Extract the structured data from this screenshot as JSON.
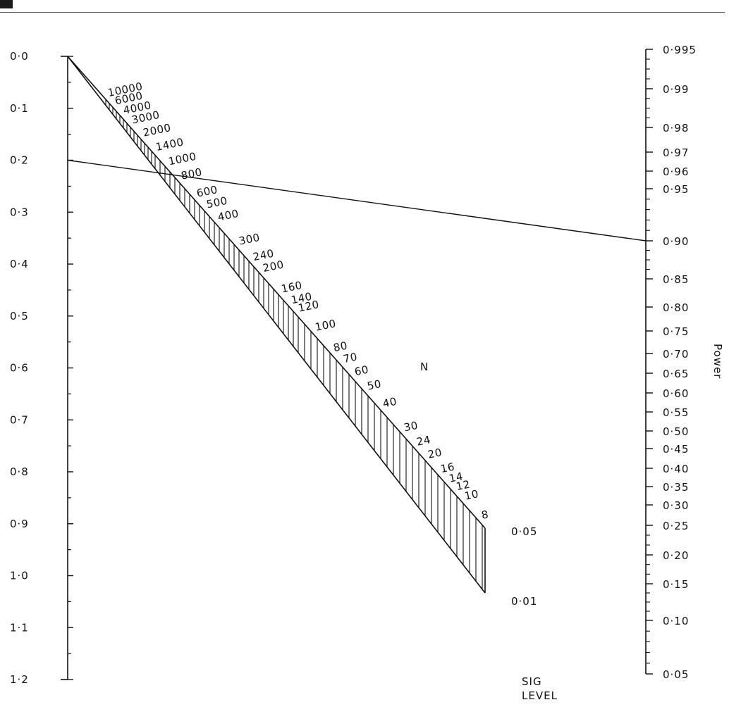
{
  "chart_data": {
    "type": "nomogram",
    "left_axis": {
      "ticks": [
        "0·0",
        "0·1",
        "0·2",
        "0·3",
        "0·4",
        "0·5",
        "0·6",
        "0·7",
        "0·8",
        "0·9",
        "1·0",
        "1·1",
        "1·2"
      ],
      "values": [
        0.0,
        0.1,
        0.2,
        0.3,
        0.4,
        0.5,
        0.6,
        0.7,
        0.8,
        0.9,
        1.0,
        1.1,
        1.2
      ],
      "minor_step": 0.05
    },
    "right_axis": {
      "title": "Power",
      "ticks": [
        "0·995",
        "0·99",
        "0·98",
        "0·97",
        "0·96",
        "0·95",
        "0·90",
        "0·85",
        "0·80",
        "0·75",
        "0·70",
        "0·65",
        "0·60",
        "0·55",
        "0·50",
        "0·45",
        "0·40",
        "0·35",
        "0·30",
        "0·25",
        "0·20",
        "0·15",
        "0·10",
        "0·05"
      ],
      "values": [
        0.995,
        0.99,
        0.98,
        0.97,
        0.96,
        0.95,
        0.9,
        0.85,
        0.8,
        0.75,
        0.7,
        0.65,
        0.6,
        0.55,
        0.5,
        0.45,
        0.4,
        0.35,
        0.3,
        0.25,
        0.2,
        0.15,
        0.1,
        0.05
      ]
    },
    "n_scale": {
      "title": "N",
      "labels": [
        "10000",
        "6000",
        "4000",
        "3000",
        "2000",
        "1400",
        "1000",
        "800",
        "600",
        "500",
        "400",
        "300",
        "240",
        "200",
        "160",
        "140",
        "120",
        "100",
        "80",
        "70",
        "60",
        "50",
        "40",
        "30",
        "24",
        "20",
        "16",
        "14",
        "12",
        "10",
        "8"
      ],
      "values": [
        10000,
        6000,
        4000,
        3000,
        2000,
        1400,
        1000,
        800,
        600,
        500,
        400,
        300,
        240,
        200,
        160,
        140,
        120,
        100,
        80,
        70,
        60,
        50,
        40,
        30,
        24,
        20,
        16,
        14,
        12,
        10,
        8
      ]
    },
    "sig_level": {
      "title_line1": "SIG",
      "title_line2": "LEVEL",
      "levels": [
        "0·05",
        "0·01"
      ],
      "values": [
        0.05,
        0.01
      ]
    },
    "example_line": {
      "from_left_value": 0.2,
      "to_power": 0.9
    }
  }
}
